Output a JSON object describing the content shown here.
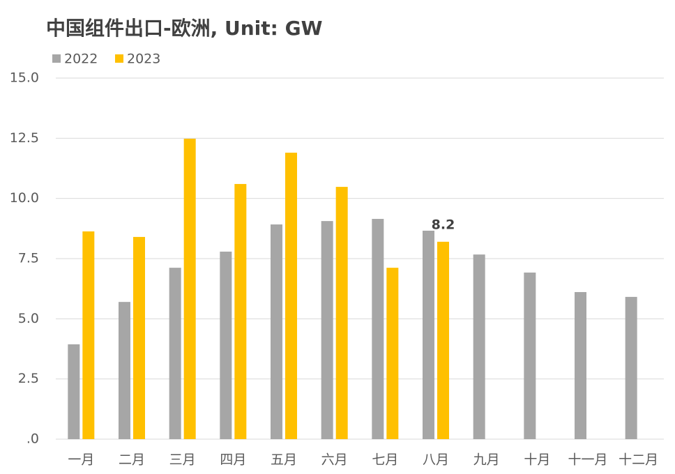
{
  "chart_data": {
    "type": "bar",
    "title": "中国组件出口-欧洲, Unit: GW",
    "categories": [
      "一月",
      "二月",
      "三月",
      "四月",
      "五月",
      "六月",
      "七月",
      "八月",
      "九月",
      "十月",
      "十一月",
      "十二月"
    ],
    "series": [
      {
        "name": "2022",
        "color": "#a6a6a6",
        "values": [
          3.94,
          5.7,
          7.12,
          7.79,
          8.92,
          9.06,
          9.15,
          8.66,
          7.67,
          6.92,
          6.11,
          5.91
        ]
      },
      {
        "name": "2023",
        "color": "#ffc000",
        "values": [
          8.63,
          8.4,
          12.48,
          10.6,
          11.9,
          10.48,
          7.12,
          8.2,
          null,
          null,
          null,
          null
        ],
        "value_labels": [
          null,
          null,
          null,
          null,
          null,
          null,
          null,
          "8.2",
          null,
          null,
          null,
          null
        ]
      }
    ],
    "ylim": [
      0,
      15
    ],
    "yticks": [
      {
        "value": 0,
        "label": ".0"
      },
      2.5,
      {
        "value": 5,
        "label": "5.0"
      },
      7.5,
      {
        "value": 10,
        "label": "10.0"
      },
      12.5,
      {
        "value": 15,
        "label": "15.0"
      }
    ],
    "grid": true
  }
}
